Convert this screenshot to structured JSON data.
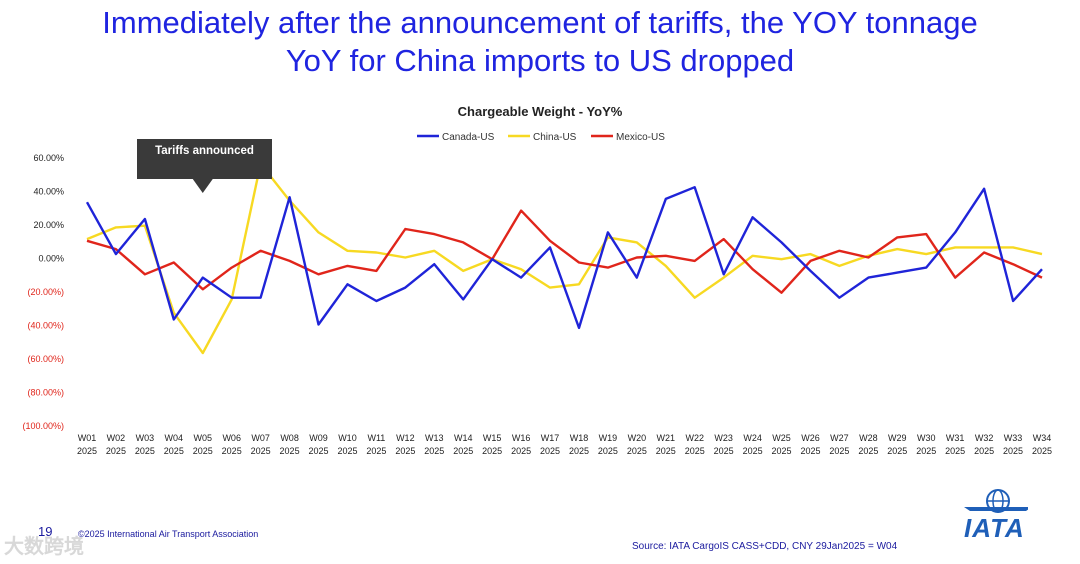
{
  "headline": {
    "line1": "Immediately after the announcement of tariffs, the YOY tonnage",
    "line2": "YoY for China imports to US dropped"
  },
  "chart_data": {
    "type": "line",
    "title": "Chargeable Weight - YoY%",
    "legend_position": "top",
    "categories": [
      {
        "week": "W01",
        "year": "2025"
      },
      {
        "week": "W02",
        "year": "2025"
      },
      {
        "week": "W03",
        "year": "2025"
      },
      {
        "week": "W04",
        "year": "2025"
      },
      {
        "week": "W05",
        "year": "2025"
      },
      {
        "week": "W06",
        "year": "2025"
      },
      {
        "week": "W07",
        "year": "2025"
      },
      {
        "week": "W08",
        "year": "2025"
      },
      {
        "week": "W09",
        "year": "2025"
      },
      {
        "week": "W10",
        "year": "2025"
      },
      {
        "week": "W11",
        "year": "2025"
      },
      {
        "week": "W12",
        "year": "2025"
      },
      {
        "week": "W13",
        "year": "2025"
      },
      {
        "week": "W14",
        "year": "2025"
      },
      {
        "week": "W15",
        "year": "2025"
      },
      {
        "week": "W16",
        "year": "2025"
      },
      {
        "week": "W17",
        "year": "2025"
      },
      {
        "week": "W18",
        "year": "2025"
      },
      {
        "week": "W19",
        "year": "2025"
      },
      {
        "week": "W20",
        "year": "2025"
      },
      {
        "week": "W21",
        "year": "2025"
      },
      {
        "week": "W22",
        "year": "2025"
      },
      {
        "week": "W23",
        "year": "2025"
      },
      {
        "week": "W24",
        "year": "2025"
      },
      {
        "week": "W25",
        "year": "2025"
      },
      {
        "week": "W26",
        "year": "2025"
      },
      {
        "week": "W27",
        "year": "2025"
      },
      {
        "week": "W28",
        "year": "2025"
      },
      {
        "week": "W29",
        "year": "2025"
      },
      {
        "week": "W30",
        "year": "2025"
      },
      {
        "week": "W31",
        "year": "2025"
      },
      {
        "week": "W32",
        "year": "2025"
      },
      {
        "week": "W33",
        "year": "2025"
      },
      {
        "week": "W34",
        "year": "2025"
      }
    ],
    "ylim": [
      -100,
      60
    ],
    "y_ticks": [
      {
        "value": 60,
        "label": "60.00%"
      },
      {
        "value": 40,
        "label": "40.00%"
      },
      {
        "value": 20,
        "label": "20.00%"
      },
      {
        "value": 0,
        "label": "0.00%"
      },
      {
        "value": -20,
        "label": "(20.00%)"
      },
      {
        "value": -40,
        "label": "(40.00%)"
      },
      {
        "value": -60,
        "label": "(60.00%)"
      },
      {
        "value": -80,
        "label": "(80.00%)"
      },
      {
        "value": -100,
        "label": "(100.00%)"
      }
    ],
    "series": [
      {
        "name": "Canada-US",
        "color": "#1f24d8",
        "values": [
          33,
          2,
          23,
          -37,
          -12,
          -24,
          -24,
          36,
          -40,
          -16,
          -26,
          -18,
          -4,
          -25,
          -1,
          -12,
          6,
          -42,
          15,
          -12,
          35,
          42,
          -10,
          24,
          9,
          -8,
          -24,
          -12,
          -9,
          -6,
          15,
          41,
          -26,
          -7
        ]
      },
      {
        "name": "China-US",
        "color": "#f7d922",
        "values": [
          11,
          18,
          19,
          -33,
          -57,
          -25,
          56,
          34,
          15,
          4,
          3,
          0,
          4,
          -8,
          -1,
          -7,
          -18,
          -16,
          12,
          9,
          -5,
          -24,
          -12,
          1,
          -1,
          2,
          -5,
          1,
          5,
          2,
          6,
          6,
          6,
          2
        ]
      },
      {
        "name": "Mexico-US",
        "color": "#e0251b",
        "values": [
          10,
          5,
          -10,
          -3,
          -19,
          -6,
          4,
          -2,
          -10,
          -5,
          -8,
          17,
          14,
          9,
          -1,
          28,
          10,
          -3,
          -6,
          0,
          1,
          -2,
          11,
          -7,
          -21,
          -2,
          4,
          0,
          12,
          14,
          -12,
          3,
          -4,
          -12
        ]
      }
    ],
    "annotation": {
      "text": "Tariffs announced",
      "week": "W05"
    }
  },
  "footer": {
    "page_number": "19",
    "copyright": "©2025 International Air Transport Association",
    "source": "Source: IATA  CargoIS CASS+CDD, CNY 29Jan2025 = W04",
    "logo_text": "IATA",
    "watermark": "大数跨境"
  },
  "colors": {
    "headline": "#1f24e0",
    "negative_tick": "#e0251b",
    "callout_bg": "#3a3a3a"
  }
}
